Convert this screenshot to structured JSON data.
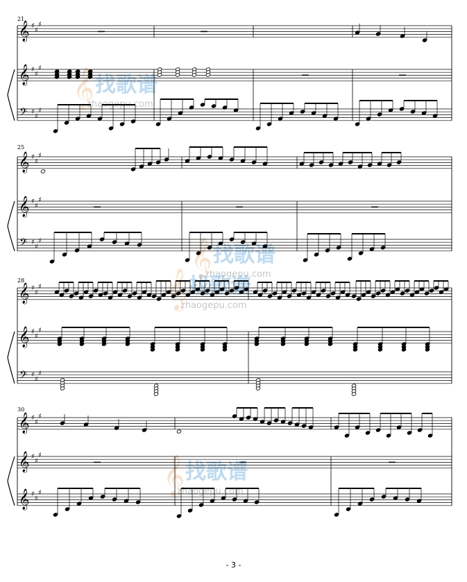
{
  "page": {
    "number_label": "- 3 -"
  },
  "watermark": {
    "brand": "找歌谱",
    "url": "zhaogepu.com",
    "colors": {
      "blue": "#5aa6e0",
      "orange": "#f2a86a"
    }
  },
  "systems": [
    {
      "first_measure": "21",
      "measures": 4
    },
    {
      "first_measure": "25",
      "measures": 3
    },
    {
      "first_measure": "28",
      "measures": 2
    },
    {
      "first_measure": "30",
      "measures": 3
    }
  ],
  "key_signature": {
    "sharps": 3
  }
}
